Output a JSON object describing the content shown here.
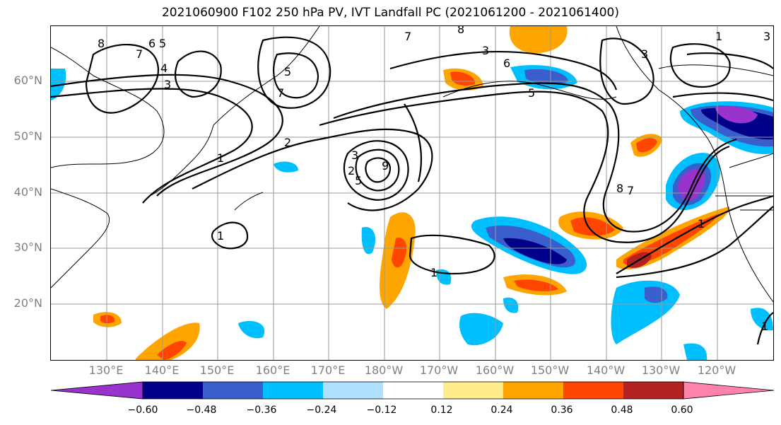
{
  "title": "2021060900 F102 250 hPa PV, IVT Landfall PC (2021061200 - 2021061400)",
  "lat_labels": [
    "60°N",
    "50°N",
    "40°N",
    "30°N",
    "20°N"
  ],
  "lon_labels": [
    "130°E",
    "140°E",
    "150°E",
    "160°E",
    "170°E",
    "180°W",
    "170°W",
    "160°W",
    "150°W",
    "140°W",
    "130°W",
    "120°W"
  ],
  "colorbar": {
    "ticks": [
      "−0.60",
      "−0.48",
      "−0.36",
      "−0.24",
      "−0.12",
      "0.12",
      "0.24",
      "0.36",
      "0.48",
      "0.60"
    ],
    "colors": [
      "#9a32cd",
      "#00008b",
      "#3a5fcd",
      "#00bfff",
      "#b0e2ff",
      "#ffffff",
      "#ffec8b",
      "#ffa500",
      "#ff4500",
      "#b22222",
      "#ff82ab"
    ]
  },
  "contour_labels": [
    "8",
    "7",
    "6",
    "5",
    "4",
    "3",
    "2",
    "1",
    "7",
    "8",
    "3",
    "6",
    "5",
    "3",
    "5",
    "7",
    "2",
    "3",
    "9",
    "5",
    "8",
    "7",
    "1",
    "1",
    "1",
    "1",
    "1",
    "3"
  ]
}
